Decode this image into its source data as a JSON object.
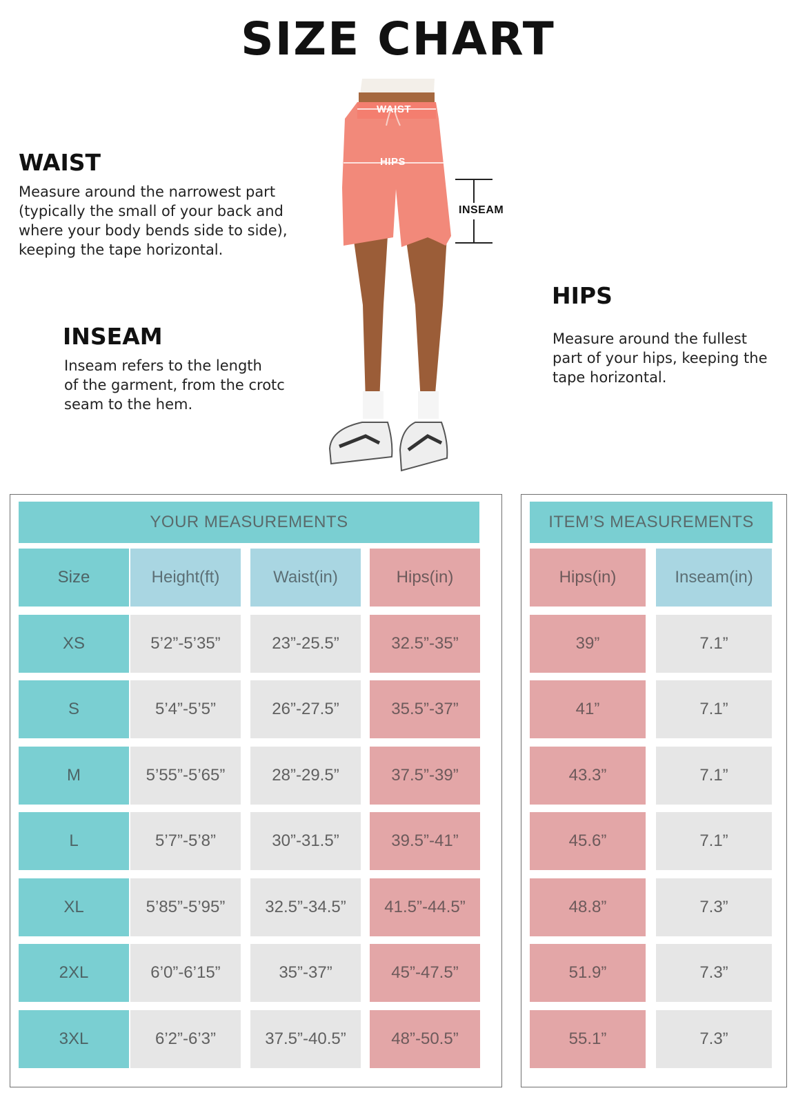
{
  "title": "SIZE  CHART",
  "guides": {
    "waist": {
      "heading": "WAIST",
      "lines": [
        "Measure around the narrowest part",
        "(typically the small of your back and",
        "where your body bends side to side),",
        "keeping the tape horizontal."
      ]
    },
    "inseam": {
      "heading": "INSEAM",
      "lines": [
        "Inseam refers to the length",
        "of the garment, from the crotc",
        "seam to the hem."
      ]
    },
    "hips": {
      "heading": "HIPS",
      "lines": [
        "Measure around the fullest",
        "part of your hips, keeping the",
        "tape horizontal."
      ]
    }
  },
  "figure_labels": {
    "waist": "WAIST",
    "hips": "HIPS",
    "inseam": "INSEAM"
  },
  "colors": {
    "teal": "#7acfd2",
    "blue": "#a9d6e2",
    "pink": "#e3a6a7",
    "grey": "#e6e6e6",
    "shorts": "#f2897a"
  },
  "your_measurements": {
    "header": "YOUR MEASUREMENTS",
    "columns": [
      "Size",
      "Height(ft)",
      "Waist(in)",
      "Hips(in)"
    ],
    "rows": [
      [
        "XS",
        "5’2”-5’35”",
        "23”-25.5”",
        "32.5”-35”"
      ],
      [
        "S",
        "5’4”-5’5”",
        "26”-27.5”",
        "35.5”-37”"
      ],
      [
        "M",
        "5’55”-5’65”",
        "28”-29.5”",
        "37.5”-39”"
      ],
      [
        "L",
        "5’7”-5’8”",
        "30”-31.5”",
        "39.5”-41”"
      ],
      [
        "XL",
        "5’85”-5’95”",
        "32.5”-34.5”",
        "41.5”-44.5”"
      ],
      [
        "2XL",
        "6’0”-6’15”",
        "35”-37”",
        "45”-47.5”"
      ],
      [
        "3XL",
        "6’2”-6’3”",
        "37.5”-40.5”",
        "48”-50.5”"
      ]
    ]
  },
  "item_measurements": {
    "header": "ITEM’S MEASUREMENTS",
    "columns": [
      "Hips(in)",
      "Inseam(in)"
    ],
    "rows": [
      [
        "39”",
        "7.1”"
      ],
      [
        "41”",
        "7.1”"
      ],
      [
        "43.3”",
        "7.1”"
      ],
      [
        "45.6”",
        "7.1”"
      ],
      [
        "48.8”",
        "7.3”"
      ],
      [
        "51.9”",
        "7.3”"
      ],
      [
        "55.1”",
        "7.3”"
      ]
    ]
  }
}
